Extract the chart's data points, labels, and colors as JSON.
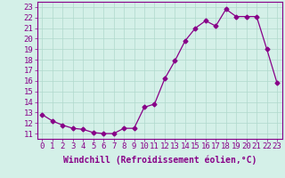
{
  "x": [
    0,
    1,
    2,
    3,
    4,
    5,
    6,
    7,
    8,
    9,
    10,
    11,
    12,
    13,
    14,
    15,
    16,
    17,
    18,
    19,
    20,
    21,
    22,
    23
  ],
  "y": [
    12.8,
    12.2,
    11.8,
    11.5,
    11.4,
    11.1,
    11.0,
    11.0,
    11.5,
    11.5,
    13.5,
    13.8,
    16.2,
    17.9,
    19.8,
    21.0,
    21.7,
    21.2,
    22.8,
    22.1,
    22.1,
    22.1,
    19.0,
    15.8
  ],
  "line_color": "#880088",
  "marker": "D",
  "marker_size": 2.5,
  "bg_color": "#d4f0e8",
  "grid_color": "#b0d8cc",
  "xlabel": "Windchill (Refroidissement éolien,°C)",
  "xlabel_fontsize": 7,
  "tick_fontsize": 6.5,
  "ylim": [
    10.5,
    23.5
  ],
  "yticks": [
    11,
    12,
    13,
    14,
    15,
    16,
    17,
    18,
    19,
    20,
    21,
    22,
    23
  ],
  "xticks": [
    0,
    1,
    2,
    3,
    4,
    5,
    6,
    7,
    8,
    9,
    10,
    11,
    12,
    13,
    14,
    15,
    16,
    17,
    18,
    19,
    20,
    21,
    22,
    23
  ]
}
